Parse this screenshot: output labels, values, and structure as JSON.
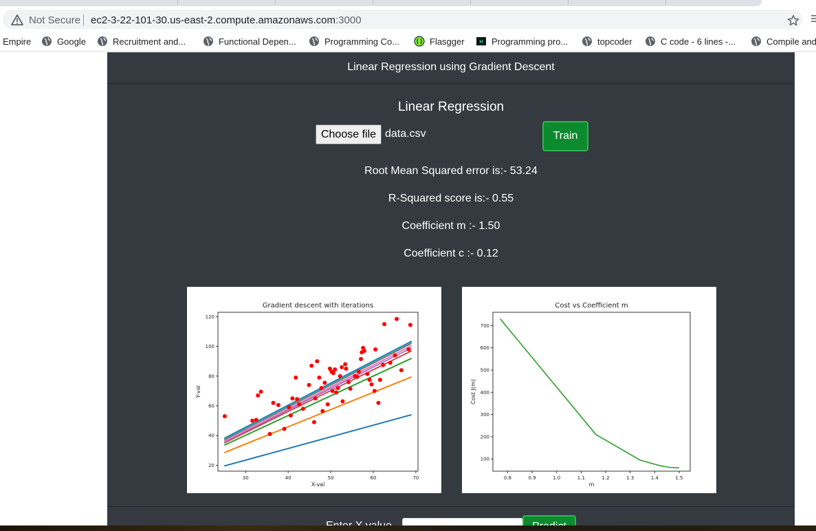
{
  "browser": {
    "security_label": "Not Secure",
    "url_host": "ec2-3-22-101-30.us-east-2.compute.amazonaws.com",
    "url_port": ":3000"
  },
  "bookmarks": [
    {
      "label": "Empire",
      "icon": "none"
    },
    {
      "label": "Google",
      "icon": "globe-icon"
    },
    {
      "label": "Recruitment and...",
      "icon": "globe-icon"
    },
    {
      "label": "Functional Depen...",
      "icon": "globe-icon"
    },
    {
      "label": "Programming Co...",
      "icon": "globe-icon"
    },
    {
      "label": "Flasgger",
      "icon": "flasgger-icon"
    },
    {
      "label": "Programming pro...",
      "icon": "hackerrank-icon"
    },
    {
      "label": "topcoder",
      "icon": "globe-icon"
    },
    {
      "label": "C code - 6 lines -...",
      "icon": "globe-icon"
    },
    {
      "label": "Compile and",
      "icon": "globe-icon"
    }
  ],
  "app": {
    "brand": "Linear Regression using Gradient Descent",
    "heading": "Linear Regression",
    "choose_file_label": "Choose file",
    "file_name": "data.csv",
    "train_label": "Train",
    "metrics": [
      "Root Mean Squared error is:- 53.24",
      "R-Squared score is:- 0.55",
      "Coefficient m :- 1.50",
      "Coefficient c :- 0.12"
    ],
    "predict_label": "Enter X value",
    "predict_button": "Predict"
  },
  "colors": {
    "page_bg": "#343a40",
    "train_green": "#0b8a2e",
    "scatter_red": "#ff0000",
    "cost_line": "#2ca02c"
  },
  "chart_data": [
    {
      "type": "scatter",
      "title": "Gradient descent with iterations",
      "xlabel": "X-val",
      "ylabel": "Y-val",
      "xticks": [
        30,
        40,
        50,
        60,
        70
      ],
      "yticks": [
        20,
        40,
        60,
        80,
        100,
        120
      ],
      "xlim": [
        23.5,
        70.5
      ],
      "ylim": [
        16,
        123
      ],
      "points": [
        [
          25.1,
          53
        ],
        [
          31.6,
          50
        ],
        [
          32.5,
          50.5
        ],
        [
          32.9,
          67
        ],
        [
          33.6,
          69.5
        ],
        [
          35.7,
          41
        ],
        [
          36.5,
          62
        ],
        [
          37.7,
          60.5
        ],
        [
          39.1,
          44.5
        ],
        [
          40.2,
          59
        ],
        [
          40.6,
          53.5
        ],
        [
          41.0,
          65
        ],
        [
          41.8,
          79
        ],
        [
          42.1,
          64.5
        ],
        [
          42.6,
          61
        ],
        [
          43.5,
          58
        ],
        [
          44.9,
          74
        ],
        [
          45.5,
          87
        ],
        [
          46.1,
          49
        ],
        [
          46.4,
          65
        ],
        [
          46.8,
          90
        ],
        [
          47.3,
          79
        ],
        [
          47.8,
          72
        ],
        [
          48.1,
          56.5
        ],
        [
          48.6,
          75.5
        ],
        [
          49.3,
          61
        ],
        [
          49.8,
          85
        ],
        [
          50.2,
          83
        ],
        [
          50.4,
          70
        ],
        [
          50.6,
          82
        ],
        [
          51.0,
          84.5
        ],
        [
          51.3,
          69
        ],
        [
          51.7,
          72
        ],
        [
          52.2,
          80
        ],
        [
          52.6,
          86
        ],
        [
          52.8,
          63
        ],
        [
          53.4,
          88
        ],
        [
          53.6,
          85
        ],
        [
          54.2,
          76
        ],
        [
          54.6,
          71.5
        ],
        [
          55.7,
          80
        ],
        [
          56.2,
          79.5
        ],
        [
          56.6,
          83
        ],
        [
          57.1,
          91.5
        ],
        [
          57.3,
          96
        ],
        [
          57.6,
          99
        ],
        [
          57.9,
          97
        ],
        [
          58.6,
          81.5
        ],
        [
          59.1,
          77.5
        ],
        [
          59.6,
          74.5
        ],
        [
          60.3,
          70
        ],
        [
          60.5,
          98
        ],
        [
          61.2,
          62
        ],
        [
          61.6,
          77.5
        ],
        [
          62.3,
          87.5
        ],
        [
          62.6,
          115
        ],
        [
          64.0,
          89
        ],
        [
          65.1,
          94
        ],
        [
          65.5,
          118.5
        ],
        [
          66.6,
          84
        ],
        [
          68.3,
          98
        ],
        [
          68.7,
          114.5
        ]
      ],
      "iteration_lines": [
        {
          "color": "#1f77b4",
          "x": [
            25,
            69
          ],
          "y": [
            19.5,
            54
          ],
          "width": 2
        },
        {
          "color": "#ff7f0e",
          "x": [
            25,
            69
          ],
          "y": [
            28.5,
            79.5
          ],
          "width": 2
        },
        {
          "color": "#2ca02c",
          "x": [
            25,
            69
          ],
          "y": [
            33.5,
            92
          ],
          "width": 2
        },
        {
          "color": "#d62728",
          "x": [
            25,
            69
          ],
          "y": [
            35,
            97
          ],
          "width": 1.6
        },
        {
          "color": "#9467bd",
          "x": [
            25,
            69
          ],
          "y": [
            35.5,
            99
          ],
          "width": 1.6
        },
        {
          "color": "#e377c2",
          "x": [
            25,
            69
          ],
          "y": [
            36,
            100.5
          ],
          "width": 2
        },
        {
          "color": "#8c564b",
          "x": [
            25,
            69
          ],
          "y": [
            37,
            102
          ],
          "width": 1.5
        },
        {
          "color": "#7f7f7f",
          "x": [
            25,
            69
          ],
          "y": [
            37.5,
            102.5
          ],
          "width": 1.5
        },
        {
          "color": "#bcbd22",
          "x": [
            25,
            69
          ],
          "y": [
            37.8,
            103
          ],
          "width": 1.5
        },
        {
          "color": "#17becf",
          "x": [
            25,
            69
          ],
          "y": [
            38,
            103.3
          ],
          "width": 2.5
        },
        {
          "color": "#1f77b4",
          "x": [
            25,
            69
          ],
          "y": [
            38.2,
            103.6
          ],
          "width": 1.5
        }
      ]
    },
    {
      "type": "line",
      "title": "Cost vs Coefficient m",
      "xlabel": "m",
      "ylabel": "Cost J(m)",
      "xticks": [
        0.8,
        0.9,
        1.0,
        1.1,
        1.2,
        1.3,
        1.4,
        1.5
      ],
      "xtick_labels": [
        "0.8",
        "0.9",
        "1.0",
        "1.1",
        "1.2",
        "1.3",
        "1.4",
        "1.5"
      ],
      "yticks": [
        100,
        200,
        300,
        400,
        500,
        600,
        700
      ],
      "xlim": [
        0.74,
        1.545
      ],
      "ylim": [
        45,
        760
      ],
      "x": [
        0.77,
        1.16,
        1.34,
        1.42,
        1.46,
        1.5
      ],
      "y": [
        730,
        210,
        95,
        70,
        62,
        60
      ]
    }
  ]
}
